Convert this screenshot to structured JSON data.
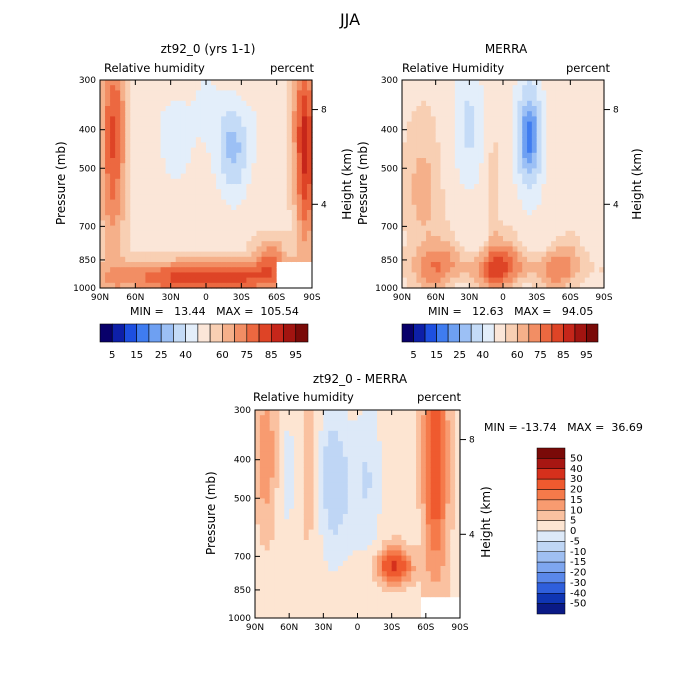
{
  "figure": {
    "title": "JJA",
    "common": {
      "variable_label": "Relative humidity",
      "units_label": "percent",
      "ylabel_left": "Pressure (mb)",
      "ylabel_right": "Height (km)",
      "x_ticks": [
        "90N",
        "60N",
        "30N",
        "0",
        "30S",
        "60S",
        "90S"
      ],
      "y_ticks": [
        "300",
        "400",
        "500",
        "700",
        "850",
        "1000"
      ],
      "height_ticks": [
        "8",
        "4"
      ]
    },
    "panels": [
      {
        "id": "model",
        "title": "zt92_0 (yrs 1-1)",
        "variable_label": "Relative humidity",
        "minmax_text": "MIN =   13.44   MAX =  105.54"
      },
      {
        "id": "merra",
        "title": "MERRA",
        "variable_label": "Relative Humidity",
        "minmax_text": "MIN =   12.63   MAX =   94.05"
      },
      {
        "id": "diff",
        "title": "zt92_0 - MERRA",
        "variable_label": "Relative humidity",
        "minmax_text": "MIN = -13.74   MAX =  36.69"
      }
    ],
    "colorbar_abs": {
      "labels": [
        "5",
        "15",
        "25",
        "40",
        "60",
        "75",
        "85",
        "95"
      ],
      "colors": [
        "#08006a",
        "#0d1fa8",
        "#1d4fe0",
        "#3f7cf0",
        "#6ea0f2",
        "#9cc0f5",
        "#c4dbf7",
        "#e3eefa",
        "#fbe6d8",
        "#f8cfb3",
        "#f5b08a",
        "#f28e64",
        "#ec6840",
        "#de4426",
        "#c6261a",
        "#a21410",
        "#7a0a08"
      ]
    },
    "colorbar_diff": {
      "labels": [
        "50",
        "40",
        "30",
        "20",
        "15",
        "10",
        "5",
        "0",
        "-5",
        "-10",
        "-15",
        "-20",
        "-30",
        "-40",
        "-50"
      ],
      "colors": [
        "#7a0a08",
        "#a71612",
        "#d5301c",
        "#ef5a2f",
        "#f57a4a",
        "#f89b70",
        "#fac1a0",
        "#fde5d2",
        "#dde9f8",
        "#bfd6f5",
        "#9fbff2",
        "#7ea6ef",
        "#5a88ea",
        "#2f5fdc",
        "#0f35b3",
        "#0a1a86"
      ]
    }
  },
  "chart_data": [
    {
      "type": "heatmap",
      "title": "zt92_0 (yrs 1-1)",
      "xlabel": "",
      "ylabel": "Pressure (mb)",
      "y2label": "Height (km)",
      "x_ticks": [
        "90N",
        "60N",
        "30N",
        "0",
        "30S",
        "60S",
        "90S"
      ],
      "y_ticks": [
        300,
        400,
        500,
        700,
        850,
        1000
      ],
      "color_levels": [
        5,
        10,
        15,
        20,
        25,
        30,
        40,
        50,
        60,
        65,
        70,
        75,
        80,
        85,
        90,
        95
      ],
      "min": 13.44,
      "max": 105.54,
      "units": "percent"
    },
    {
      "type": "heatmap",
      "title": "MERRA",
      "ylabel": "Pressure (mb)",
      "y2label": "Height (km)",
      "x_ticks": [
        "90N",
        "60N",
        "30N",
        "0",
        "30S",
        "60S",
        "90S"
      ],
      "y_ticks": [
        300,
        400,
        500,
        700,
        850,
        1000
      ],
      "min": 12.63,
      "max": 94.05,
      "units": "percent"
    },
    {
      "type": "heatmap",
      "title": "zt92_0 - MERRA",
      "ylabel": "Pressure (mb)",
      "y2label": "Height (km)",
      "x_ticks": [
        "90N",
        "60N",
        "30N",
        "0",
        "30S",
        "60S",
        "90S"
      ],
      "y_ticks": [
        300,
        400,
        500,
        700,
        850,
        1000
      ],
      "color_levels": [
        -50,
        -40,
        -30,
        -20,
        -15,
        -10,
        -5,
        0,
        5,
        10,
        15,
        20,
        30,
        40,
        50
      ],
      "min": -13.74,
      "max": 36.69,
      "units": "percent"
    }
  ]
}
